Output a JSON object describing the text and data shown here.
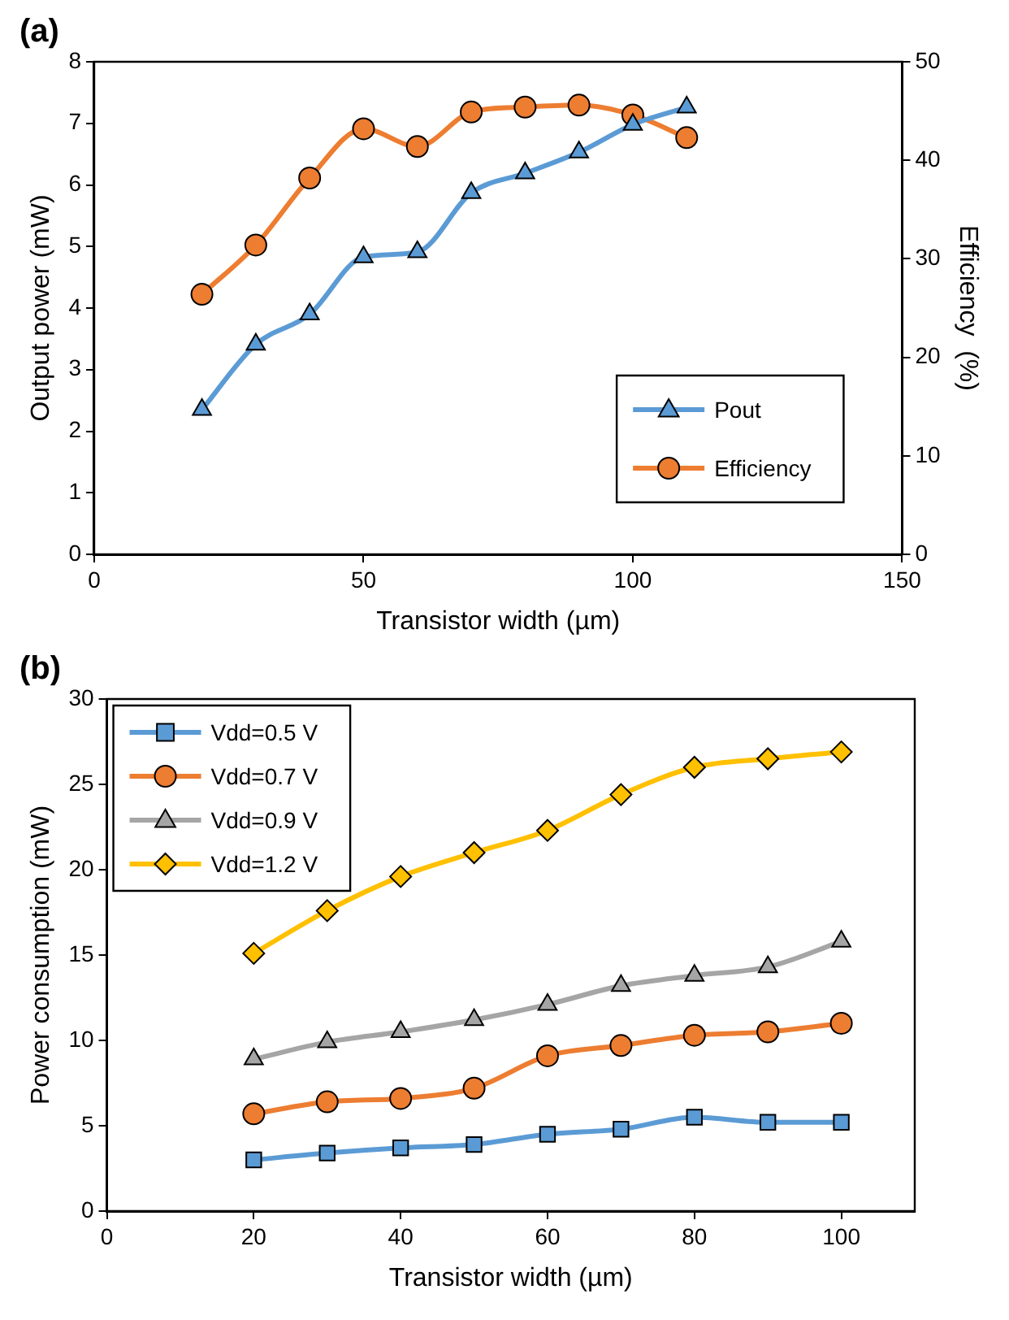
{
  "chart_data": [
    {
      "type": "line",
      "title": "(a)",
      "xlabel": "Transistor width (µm)",
      "ylabel": "Output power (mW)",
      "y2label": "Efficiency  (%)",
      "x": [
        20,
        30,
        40,
        50,
        60,
        70,
        80,
        90,
        100,
        110
      ],
      "xlim": [
        0,
        150
      ],
      "xticks": [
        0,
        50,
        100,
        150
      ],
      "ylim": [
        0,
        8
      ],
      "yticks": [
        0,
        1,
        2,
        3,
        4,
        5,
        6,
        7,
        8
      ],
      "y2lim": [
        0,
        50
      ],
      "y2ticks": [
        0,
        10,
        20,
        30,
        40,
        50
      ],
      "legend": "bottom right",
      "series": [
        {
          "name": "Pout",
          "color": "#5b9bd5",
          "marker": "triangle",
          "values": [
            2.35,
            3.41,
            3.9,
            4.83,
            4.91,
            5.87,
            6.19,
            6.53,
            6.98,
            7.26
          ]
        },
        {
          "name": "Efficiency",
          "color": "#ed7d31",
          "marker": "circle",
          "axis": "y2",
          "values": [
            26.4,
            31.4,
            38.2,
            43.2,
            41.4,
            44.9,
            45.4,
            45.6,
            44.6,
            42.3
          ]
        }
      ]
    },
    {
      "type": "line",
      "title": "(b)",
      "xlabel": "Transistor width (µm)",
      "ylabel": "Power consumption (mW)",
      "x": [
        20,
        30,
        40,
        50,
        60,
        70,
        80,
        90,
        100
      ],
      "xlim": [
        0,
        110
      ],
      "xticks": [
        0,
        20,
        40,
        60,
        80,
        100
      ],
      "ylim": [
        0,
        30
      ],
      "yticks": [
        0,
        5,
        10,
        15,
        20,
        25,
        30
      ],
      "legend": "top left",
      "series": [
        {
          "name": "Vdd=0.5 V",
          "color": "#5b9bd5",
          "marker": "square",
          "values": [
            3.0,
            3.4,
            3.7,
            3.9,
            4.5,
            4.8,
            5.5,
            5.2,
            5.2
          ]
        },
        {
          "name": "Vdd=0.7 V",
          "color": "#ed7d31",
          "marker": "circle",
          "values": [
            5.7,
            6.4,
            6.6,
            7.2,
            9.1,
            9.7,
            10.3,
            10.5,
            11.0
          ]
        },
        {
          "name": "Vdd=0.9 V",
          "color": "#a5a5a5",
          "marker": "triangle",
          "values": [
            8.9,
            9.9,
            10.5,
            11.2,
            12.1,
            13.2,
            13.8,
            14.3,
            15.8
          ]
        },
        {
          "name": "Vdd=1.2 V",
          "color": "#ffc000",
          "marker": "diamond",
          "values": [
            15.1,
            17.6,
            19.6,
            21.0,
            22.3,
            24.4,
            26.0,
            26.5,
            26.9
          ]
        }
      ]
    }
  ]
}
